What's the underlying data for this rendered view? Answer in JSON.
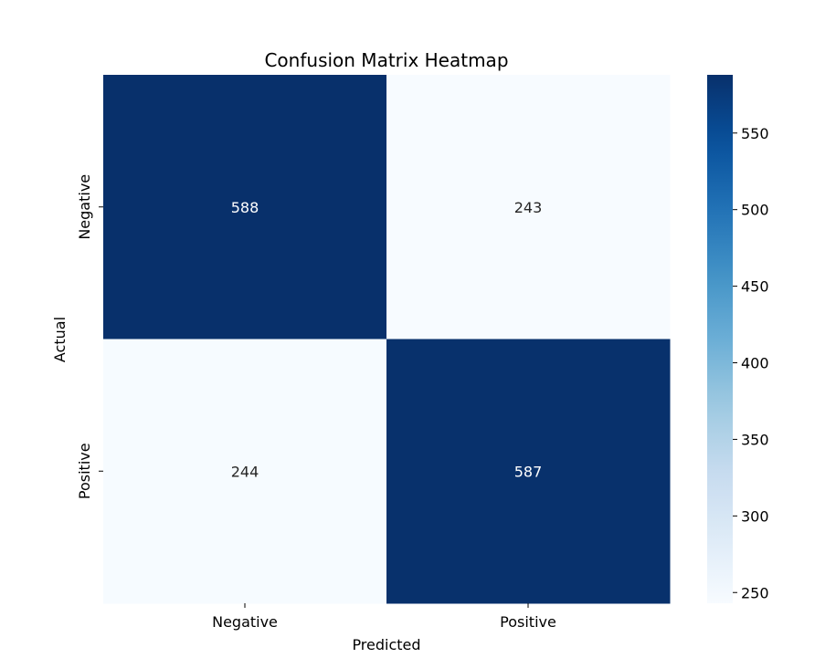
{
  "chart_data": {
    "type": "heatmap",
    "title": "Confusion Matrix Heatmap",
    "xlabel": "Predicted",
    "ylabel": "Actual",
    "x_categories": [
      "Negative",
      "Positive"
    ],
    "y_categories": [
      "Negative",
      "Positive"
    ],
    "values": [
      [
        588,
        243
      ],
      [
        244,
        587
      ]
    ],
    "colormap": "Blues",
    "color_range": [
      243,
      588
    ],
    "colorbar_ticks": [
      250,
      300,
      350,
      400,
      450,
      500,
      550
    ],
    "grid": false
  }
}
